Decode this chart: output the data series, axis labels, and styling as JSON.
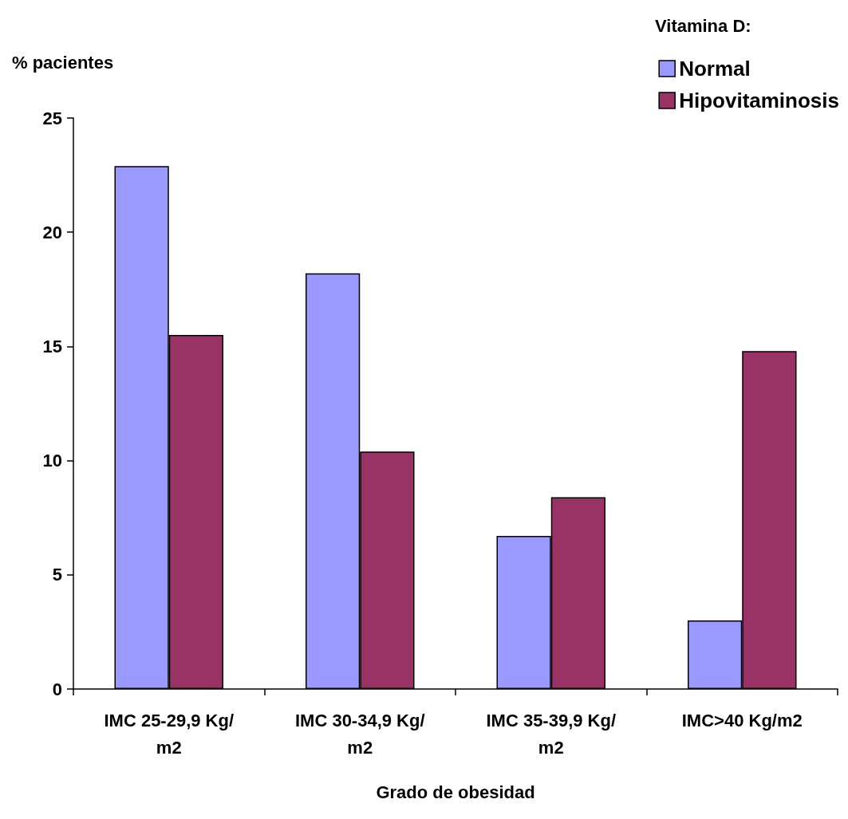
{
  "chart_data": {
    "type": "bar",
    "categories": [
      "IMC 25-29,9 Kg/m2",
      "IMC 30-34,9 Kg/m2",
      "IMC 35-39,9 Kg/m2",
      "IMC>40 Kg/m2"
    ],
    "series": [
      {
        "name": "Normal",
        "color": "#9999ff",
        "values": [
          22.9,
          18.2,
          6.7,
          3.0
        ]
      },
      {
        "name": "Hipovitaminosis",
        "color": "#993366",
        "values": [
          15.5,
          10.4,
          8.4,
          14.8
        ]
      }
    ],
    "xlabel": "Grado de obesidad",
    "ylabel": "% pacientes",
    "legend_title": "Vitamina D:",
    "ylim": [
      0,
      25
    ],
    "yticks": [
      0,
      5,
      10,
      15,
      20,
      25
    ],
    "grid": false,
    "legend": "top right"
  }
}
